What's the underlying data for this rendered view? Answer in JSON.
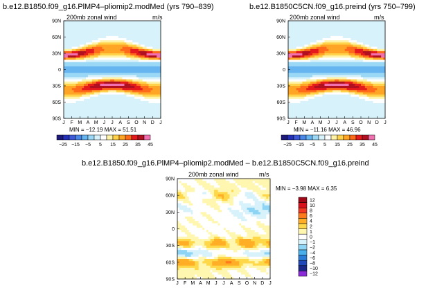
{
  "panels": [
    {
      "title": "b.e12.B1850.f09_g16.PlMP4–pliomip2.modMed (yrs 790–839)",
      "variable": "200mb zonal wind",
      "units": "m/s",
      "stats": "MIN = −12.19  MAX =  51.51"
    },
    {
      "title": "b.e12.B1850C5CN.f09_g16.preind  (yrs 750–799)",
      "variable": "200mb zonal wind",
      "units": "m/s",
      "stats": "MIN = −11.16  MAX =  46.96"
    },
    {
      "title": "b.e12.B1850.f09_g16.PlMP4–pliomip2.modMed – b.e12.B1850C5CN.f09_g16.preind",
      "variable": "200mb zonal wind",
      "units": "m/s",
      "stats": "MIN =  −3.98  MAX =   6.35"
    }
  ],
  "chart_data": [
    {
      "type": "heatmap",
      "title": "b.e12.B1850.f09_g16.PlMP4–pliomip2.modMed (yrs 790–839)",
      "variable": "200mb zonal wind",
      "units": "m/s",
      "x_ticks": [
        "J",
        "F",
        "M",
        "A",
        "M",
        "J",
        "J",
        "A",
        "S",
        "O",
        "N",
        "D",
        "J"
      ],
      "y_ticks": [
        "90N",
        "60N",
        "30N",
        "0",
        "30S",
        "60S",
        "90S"
      ],
      "levels": [
        -25,
        -20,
        -15,
        -10,
        -5,
        0,
        5,
        10,
        15,
        20,
        25,
        30,
        35,
        40,
        45
      ],
      "colorbar_labels": [
        "−25",
        "−15",
        "−5",
        "5",
        "15",
        "25",
        "35",
        "45"
      ],
      "min": -12.19,
      "max": 51.51
    },
    {
      "type": "heatmap",
      "title": "b.e12.B1850C5CN.f09_g16.preind  (yrs 750–799)",
      "variable": "200mb zonal wind",
      "units": "m/s",
      "x_ticks": [
        "J",
        "F",
        "M",
        "A",
        "M",
        "J",
        "J",
        "A",
        "S",
        "O",
        "N",
        "D",
        "J"
      ],
      "y_ticks": [
        "90N",
        "60N",
        "30N",
        "0",
        "30S",
        "60S",
        "90S"
      ],
      "levels": [
        -25,
        -20,
        -15,
        -10,
        -5,
        0,
        5,
        10,
        15,
        20,
        25,
        30,
        35,
        40,
        45
      ],
      "colorbar_labels": [
        "−25",
        "−15",
        "−5",
        "5",
        "15",
        "25",
        "35",
        "45"
      ],
      "min": -11.16,
      "max": 46.96
    },
    {
      "type": "heatmap",
      "title": "b.e12.B1850.f09_g16.PlMP4–pliomip2.modMed – b.e12.B1850C5CN.f09_g16.preind",
      "variable": "200mb zonal wind",
      "units": "m/s",
      "x_ticks": [
        "J",
        "F",
        "M",
        "A",
        "M",
        "J",
        "J",
        "A",
        "S",
        "O",
        "N",
        "D",
        "J"
      ],
      "y_ticks": [
        "90N",
        "60N",
        "30N",
        "0",
        "30S",
        "60S",
        "90S"
      ],
      "levels": [
        12,
        10,
        8,
        6,
        4,
        2,
        1,
        0,
        -1,
        -2,
        -4,
        -6,
        -8,
        -10,
        -12
      ],
      "colorbar_labels": [
        "12",
        "10",
        "8",
        "6",
        "4",
        "2",
        "1",
        "0",
        "−1",
        "−2",
        "−4",
        "−6",
        "−8",
        "−10",
        "−12"
      ],
      "min": -3.98,
      "max": 6.35
    }
  ],
  "colors": {
    "wind_palette": [
      "#1e1a7a",
      "#2430b8",
      "#3f5ad8",
      "#4a88e8",
      "#66b4f0",
      "#9ad8f6",
      "#d8f2fb",
      "#ffffff",
      "#fff3a8",
      "#ffd24a",
      "#ffa526",
      "#ff6a1a",
      "#e41a1c",
      "#b01020",
      "#f070b0"
    ],
    "diff_palette": [
      "#a00818",
      "#d8101c",
      "#f03822",
      "#ff7a1a",
      "#ffae26",
      "#ffd84a",
      "#fff6b0",
      "#ffffff",
      "#d8f2fb",
      "#8ed4f4",
      "#4ab0ec",
      "#2a7ed8",
      "#2048b8",
      "#1a2888",
      "#8a2ad8"
    ]
  }
}
